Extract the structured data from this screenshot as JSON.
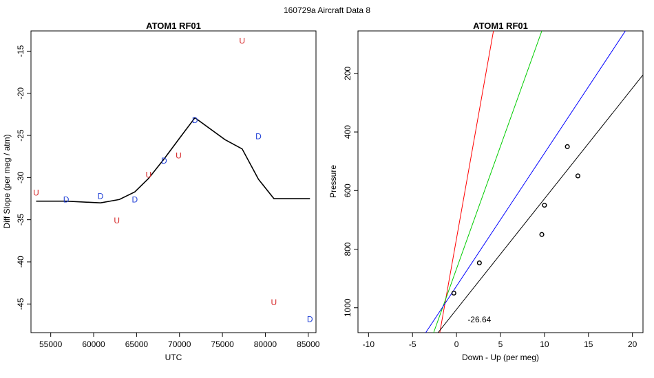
{
  "figure": {
    "suptitle": "160729a   Aircraft Data 8"
  },
  "chart_data": [
    {
      "type": "line",
      "title": "ATOM1 RF01",
      "xlabel": "UTC",
      "ylabel": "Diff Slope (per meg / atm)",
      "xlim": [
        52700,
        85900
      ],
      "ylim": [
        -48.4,
        -12.6
      ],
      "xticks": [
        55000,
        60000,
        65000,
        70000,
        75000,
        80000,
        85000
      ],
      "yticks": [
        -15,
        -20,
        -25,
        -30,
        -35,
        -40,
        -45
      ],
      "line_color": "#000000",
      "line": {
        "x": [
          53300,
          56800,
          60800,
          63000,
          64800,
          66400,
          68200,
          70100,
          71800,
          75300,
          77300,
          79200,
          81000,
          85200
        ],
        "y": [
          -32.8,
          -32.8,
          -33.0,
          -32.6,
          -31.7,
          -30.1,
          -27.8,
          -25.2,
          -22.9,
          -25.5,
          -26.6,
          -30.2,
          -32.5,
          -32.5
        ]
      },
      "point_series": [
        {
          "symbol": "U",
          "color": "#d62728",
          "x": [
            53300,
            62700,
            66400,
            69900,
            77300,
            81000
          ],
          "y": [
            -31.8,
            -35.1,
            -29.7,
            -27.4,
            -13.8,
            -44.8
          ]
        },
        {
          "symbol": "D",
          "color": "#1f3fd6",
          "x": [
            56800,
            60800,
            64800,
            68200,
            71800,
            79200,
            85200
          ],
          "y": [
            -32.6,
            -32.2,
            -32.6,
            -28.0,
            -23.2,
            -25.1,
            -46.8
          ]
        }
      ]
    },
    {
      "type": "scatter",
      "title": "ATOM1 RF01",
      "xlabel": "Down - Up (per meg)",
      "ylabel": "Pressure",
      "xlim": [
        -11.2,
        21.2
      ],
      "ylim": [
        1085,
        55
      ],
      "xticks": [
        -10,
        -5,
        0,
        5,
        10,
        15,
        20
      ],
      "yticks": [
        200,
        400,
        600,
        800,
        1000
      ],
      "annotation": {
        "text": "-26.64",
        "x": 2.6,
        "y": 1040
      },
      "points": {
        "x": [
          -0.3,
          2.6,
          9.7,
          10.0,
          12.6,
          13.8
        ],
        "y": [
          950,
          847,
          750,
          650,
          450,
          550
        ]
      },
      "fit_lines": [
        {
          "color": "#ff0000",
          "x": [
            -1.9,
            4.2
          ],
          "y": [
            1085,
            55
          ]
        },
        {
          "color": "#00cc00",
          "x": [
            -2.6,
            9.7
          ],
          "y": [
            1085,
            55
          ]
        },
        {
          "color": "#0000ff",
          "x": [
            -3.5,
            19.2
          ],
          "y": [
            1085,
            55
          ]
        },
        {
          "color": "#000000",
          "x": [
            -2.1,
            21.2
          ],
          "y": [
            1085,
            205
          ]
        }
      ]
    }
  ]
}
